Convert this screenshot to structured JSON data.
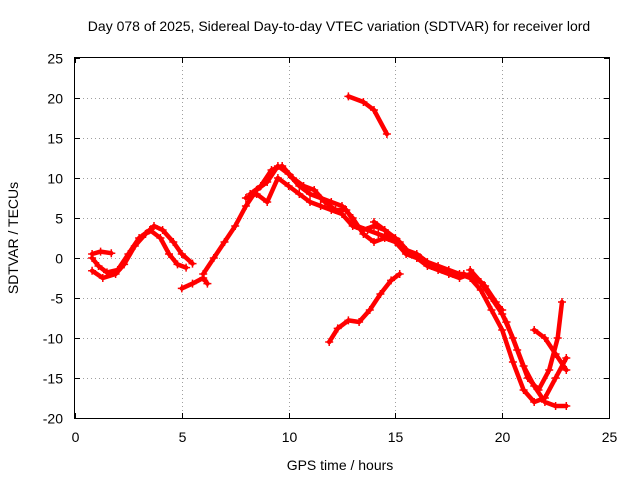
{
  "chart_data": {
    "type": "scatter",
    "title": "Day 078 of 2025, Sidereal Day-to-day VTEC variation (SDTVAR) for receiver lord",
    "xlabel": "GPS time / hours",
    "ylabel": "SDTVAR / TECUs",
    "xlim": [
      0,
      25
    ],
    "ylim": [
      -20,
      25
    ],
    "xticks": [
      "0",
      "5",
      "10",
      "15",
      "20",
      "25"
    ],
    "yticks": [
      "-20",
      "-15",
      "-10",
      "-5",
      "0",
      "5",
      "10",
      "15",
      "20",
      "25"
    ],
    "grid": true,
    "legend": "none",
    "color": "#ff0000",
    "series": [
      {
        "name": "track-1",
        "points": [
          [
            0.8,
            0.0
          ],
          [
            1.1,
            -1.0
          ],
          [
            1.5,
            -1.8
          ],
          [
            2.0,
            -1.5
          ],
          [
            2.5,
            0.5
          ],
          [
            3.0,
            2.5
          ],
          [
            3.5,
            3.5
          ],
          [
            4.0,
            2.5
          ],
          [
            4.4,
            0.5
          ],
          [
            4.8,
            -0.8
          ],
          [
            5.2,
            -1.2
          ]
        ]
      },
      {
        "name": "track-2",
        "points": [
          [
            0.8,
            0.5
          ],
          [
            1.2,
            0.8
          ],
          [
            1.7,
            0.6
          ]
        ]
      },
      {
        "name": "track-3",
        "points": [
          [
            0.8,
            -1.6
          ],
          [
            1.3,
            -2.5
          ],
          [
            1.9,
            -2.0
          ],
          [
            2.3,
            -0.8
          ],
          [
            2.8,
            1.5
          ],
          [
            3.3,
            3.0
          ],
          [
            3.7,
            4.0
          ],
          [
            4.1,
            3.5
          ],
          [
            4.6,
            2.0
          ],
          [
            5.0,
            0.5
          ],
          [
            5.5,
            -0.7
          ]
        ]
      },
      {
        "name": "track-4",
        "points": [
          [
            5.0,
            -3.8
          ],
          [
            5.5,
            -3.2
          ],
          [
            6.0,
            -2.5
          ],
          [
            6.2,
            -3.2
          ]
        ]
      },
      {
        "name": "track-5",
        "points": [
          [
            6.0,
            -2.0
          ],
          [
            6.5,
            0.0
          ],
          [
            7.0,
            2.0
          ],
          [
            7.5,
            4.0
          ],
          [
            8.0,
            6.5
          ],
          [
            8.5,
            8.5
          ],
          [
            9.0,
            9.5
          ],
          [
            9.5,
            11.5
          ],
          [
            10.0,
            10.5
          ],
          [
            10.5,
            9.0
          ],
          [
            11.0,
            8.0
          ],
          [
            11.5,
            7.5
          ],
          [
            12.0,
            7.0
          ],
          [
            12.5,
            6.5
          ],
          [
            13.0,
            5.0
          ],
          [
            13.5,
            3.0
          ],
          [
            14.0,
            2.0
          ],
          [
            14.5,
            2.5
          ],
          [
            15.0,
            2.0
          ],
          [
            15.5,
            0.5
          ],
          [
            16.0,
            0.0
          ],
          [
            16.5,
            -1.0
          ],
          [
            17.0,
            -1.5
          ],
          [
            17.5,
            -2.0
          ],
          [
            18.0,
            -2.5
          ],
          [
            18.5,
            -2.0
          ],
          [
            19.0,
            -3.0
          ],
          [
            19.5,
            -5.0
          ],
          [
            20.0,
            -7.0
          ],
          [
            20.5,
            -10.0
          ],
          [
            21.0,
            -13.5
          ],
          [
            21.5,
            -16.0
          ],
          [
            22.0,
            -18.0
          ],
          [
            22.5,
            -18.5
          ],
          [
            23.0,
            -18.5
          ]
        ]
      },
      {
        "name": "track-6",
        "points": [
          [
            8.0,
            7.5
          ],
          [
            8.5,
            8.0
          ],
          [
            9.0,
            7.0
          ],
          [
            9.5,
            10.0
          ],
          [
            10.0,
            9.0
          ],
          [
            10.5,
            8.0
          ],
          [
            11.0,
            7.0
          ],
          [
            11.5,
            6.5
          ],
          [
            12.0,
            6.0
          ],
          [
            12.5,
            5.5
          ],
          [
            13.0,
            4.0
          ],
          [
            13.5,
            3.5
          ],
          [
            14.0,
            4.0
          ],
          [
            14.5,
            3.5
          ],
          [
            15.0,
            2.5
          ],
          [
            15.5,
            1.0
          ],
          [
            16.0,
            0.5
          ],
          [
            16.5,
            -0.5
          ],
          [
            17.0,
            -1.0
          ],
          [
            17.5,
            -1.5
          ],
          [
            18.0,
            -2.0
          ],
          [
            18.5,
            -2.5
          ],
          [
            19.0,
            -4.0
          ],
          [
            19.5,
            -6.5
          ],
          [
            20.0,
            -9.0
          ],
          [
            20.5,
            -13.0
          ],
          [
            21.0,
            -16.5
          ],
          [
            21.5,
            -18.0
          ],
          [
            22.0,
            -17.5
          ],
          [
            22.5,
            -15.0
          ],
          [
            23.0,
            -12.5
          ]
        ]
      },
      {
        "name": "track-7",
        "points": [
          [
            8.2,
            8.0
          ],
          [
            8.7,
            9.0
          ],
          [
            9.2,
            11.0
          ],
          [
            9.7,
            11.5
          ],
          [
            10.2,
            10.0
          ],
          [
            10.7,
            9.0
          ],
          [
            11.2,
            8.5
          ],
          [
            11.7,
            7.0
          ],
          [
            12.2,
            6.0
          ],
          [
            12.7,
            6.0
          ],
          [
            13.2,
            4.0
          ],
          [
            13.7,
            3.5
          ],
          [
            14.2,
            3.0
          ],
          [
            14.7,
            2.5
          ],
          [
            15.2,
            2.0
          ],
          [
            15.7,
            0.5
          ],
          [
            16.2,
            0.0
          ],
          [
            16.7,
            -1.0
          ],
          [
            17.2,
            -1.5
          ],
          [
            17.7,
            -2.0
          ],
          [
            18.2,
            -2.0
          ],
          [
            18.7,
            -2.5
          ],
          [
            19.2,
            -3.5
          ],
          [
            19.7,
            -5.5
          ],
          [
            20.2,
            -8.0
          ],
          [
            20.7,
            -11.5
          ],
          [
            21.2,
            -15.0
          ],
          [
            21.7,
            -16.5
          ],
          [
            22.2,
            -14.0
          ],
          [
            22.6,
            -10.0
          ],
          [
            22.8,
            -5.5
          ]
        ]
      },
      {
        "name": "track-8",
        "points": [
          [
            14.0,
            4.5
          ],
          [
            14.5,
            3.5
          ],
          [
            15.0,
            2.0
          ]
        ]
      },
      {
        "name": "track-9",
        "points": [
          [
            18.5,
            -1.5
          ],
          [
            19.0,
            -3.0
          ],
          [
            19.5,
            -5.0
          ],
          [
            20.0,
            -6.5
          ]
        ]
      },
      {
        "name": "track-10",
        "points": [
          [
            21.5,
            -9.0
          ],
          [
            22.0,
            -10.0
          ],
          [
            22.5,
            -12.0
          ],
          [
            23.0,
            -14.0
          ]
        ]
      },
      {
        "name": "track-11",
        "points": [
          [
            12.8,
            20.2
          ],
          [
            13.5,
            19.5
          ],
          [
            14.0,
            18.5
          ],
          [
            14.6,
            15.5
          ]
        ]
      },
      {
        "name": "track-12",
        "points": [
          [
            11.9,
            -10.5
          ],
          [
            12.3,
            -8.8
          ],
          [
            12.8,
            -7.8
          ],
          [
            13.3,
            -8.0
          ],
          [
            13.8,
            -6.5
          ],
          [
            14.3,
            -4.5
          ],
          [
            14.8,
            -2.8
          ],
          [
            15.2,
            -2.0
          ]
        ]
      }
    ]
  }
}
